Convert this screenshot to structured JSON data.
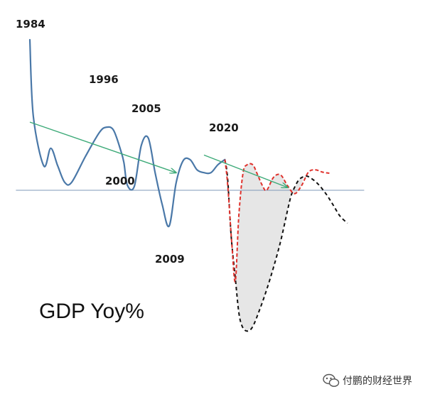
{
  "chart_data": {
    "type": "line",
    "title": "GDP Yoy%",
    "xlabel": "",
    "ylabel": "",
    "annotations": [
      "1984",
      "1996",
      "2005",
      "2000",
      "2009",
      "2020"
    ],
    "series": [
      {
        "x": [
          0,
          0.5,
          2,
          3,
          4,
          5,
          6,
          8,
          10,
          11,
          12,
          13,
          13.5,
          14,
          15,
          16,
          17,
          18,
          19,
          20,
          21,
          22,
          23,
          24,
          25,
          26,
          27,
          28
        ],
        "y": [
          26.5,
          13,
          4.3,
          7.4,
          4.3,
          1.4,
          1.4,
          6,
          10.2,
          11.1,
          10.6,
          7.2,
          4.9,
          0.9,
          0.7,
          7.9,
          9.2,
          3,
          -2.5,
          -6.3,
          1.3,
          5.2,
          5.4,
          3.6,
          3.1,
          3.1,
          4.5,
          5.4
        ]
      },
      {
        "x": [
          28,
          28.4,
          29,
          29.5,
          30,
          30.6,
          31.2,
          32,
          32.6,
          33.4,
          34,
          35,
          36,
          37,
          38,
          39,
          40,
          41,
          42,
          43
        ],
        "y": [
          5.4,
          1,
          -9.5,
          -16,
          -4.5,
          3,
          4.5,
          4.5,
          3,
          0.8,
          0,
          2.3,
          2.7,
          0.8,
          -0.6,
          0.8,
          3.2,
          3.6,
          3.2,
          3
        ]
      },
      {
        "x": [
          28,
          28.4,
          28.9,
          29.5,
          30,
          30.5,
          31.2,
          32,
          33,
          34,
          35,
          36,
          37,
          37.5,
          38,
          38.6,
          39.3,
          40,
          41.3,
          42.5,
          43.5,
          44.5,
          45.6
        ],
        "y": [
          5.4,
          2,
          -8,
          -15.5,
          -21.5,
          -24,
          -24.8,
          -24,
          -21,
          -17.5,
          -13.5,
          -9,
          -3.5,
          -1,
          0.5,
          1.8,
          2.4,
          2.4,
          1.2,
          -0.6,
          -2.5,
          -4.5,
          -5.8
        ]
      },
      {
        "x": [
          0,
          21
        ],
        "y": [
          12,
          3.1
        ]
      },
      {
        "x": [
          25,
          37
        ],
        "y": [
          6.2,
          0.5
        ]
      },
      {
        "x": [
          -2,
          48
        ],
        "y": [
          0,
          0
        ]
      }
    ],
    "colors": {
      "gdp_actual": "#4a78a8",
      "trend_arrow": "#3daa78",
      "scenario_red": "#e0312c",
      "scenario_black": "#111111",
      "zero_line": "#7f98b8",
      "shaded_area": "#e6e6e6"
    }
  },
  "watermark": {
    "icon": "wechat-icon",
    "text": "付鹏的财经世界"
  }
}
